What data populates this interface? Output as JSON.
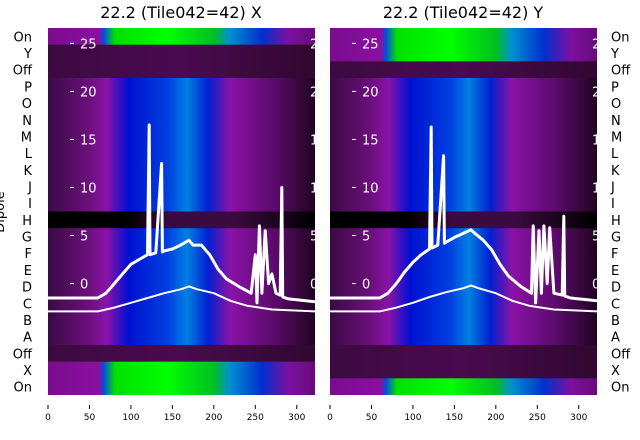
{
  "chart_data": {
    "type": "heatmap",
    "ylabel": "Dipole",
    "row_labels": [
      "On",
      "Y",
      "Off",
      "P",
      "O",
      "N",
      "M",
      "L",
      "K",
      "J",
      "I",
      "H",
      "G",
      "F",
      "E",
      "D",
      "C",
      "B",
      "A",
      "Off",
      "X",
      "On"
    ],
    "x_ticks": [
      0,
      50,
      100,
      150,
      200,
      250,
      300
    ],
    "xlim": [
      0,
      322
    ],
    "overlay_y_ticks": [
      0,
      5,
      10,
      15,
      20,
      25
    ],
    "overlay_ylim": [
      -11.6,
      26.6
    ],
    "panels": [
      {
        "title": "22.2 (Tile042=42) X",
        "row_bands": [
          "bright",
          "dim",
          "dim",
          "mid",
          "mid",
          "mid",
          "mid",
          "mid",
          "mid",
          "mid",
          "mid",
          "dead",
          "mid",
          "mid",
          "mid",
          "mid",
          "mid",
          "mid",
          "mid",
          "dim",
          "bright",
          "bright"
        ],
        "series": [
          {
            "name": "upper",
            "x": [
              0,
              60,
              70,
              80,
              90,
              100,
              110,
              120,
              122,
              123,
              130,
              137,
              138,
              140,
              150,
              160,
              170,
              175,
              185,
              195,
              205,
              215,
              230,
              245,
              250,
              252,
              255,
              258,
              262,
              266,
              270,
              275,
              280,
              282,
              283,
              290,
              322
            ],
            "y": [
              -1.5,
              -1.5,
              -1,
              0,
              1,
              2,
              2.5,
              3,
              16.5,
              3,
              3.2,
              12.5,
              3.3,
              3.4,
              3.6,
              4,
              4.5,
              4,
              4,
              3,
              1.5,
              0.5,
              -0.3,
              -1,
              3,
              -2,
              6,
              -1,
              5.5,
              0,
              1,
              -1,
              -1.2,
              10,
              -1.4,
              -1.6,
              -1.9
            ]
          },
          {
            "name": "lower",
            "x": [
              0,
              60,
              80,
              100,
              120,
              140,
              160,
              170,
              180,
              200,
              220,
              240,
              270,
              322
            ],
            "y": [
              -2.9,
              -2.9,
              -2.5,
              -2,
              -1.5,
              -1,
              -0.6,
              -0.3,
              -0.6,
              -1,
              -1.8,
              -2.3,
              -2.7,
              -2.9
            ]
          }
        ]
      },
      {
        "title": "22.2 (Tile042=42) Y",
        "row_bands": [
          "bright",
          "bright",
          "dim",
          "mid",
          "mid",
          "mid",
          "mid",
          "mid",
          "mid",
          "mid",
          "mid",
          "dead",
          "mid",
          "mid",
          "mid",
          "mid",
          "mid",
          "mid",
          "mid",
          "dim",
          "dim",
          "bright"
        ],
        "series": [
          {
            "name": "upper",
            "x": [
              0,
              60,
              70,
              80,
              90,
              100,
              110,
              120,
              122,
              123,
              130,
              137,
              138,
              140,
              150,
              160,
              170,
              175,
              185,
              195,
              205,
              215,
              230,
              243,
              245,
              248,
              252,
              255,
              258,
              262,
              265,
              270,
              280,
              282,
              283,
              290,
              322
            ],
            "y": [
              -1.5,
              -1.5,
              -1,
              0,
              1.2,
              2.2,
              3,
              3.6,
              16.3,
              3.7,
              4,
              13.3,
              4.2,
              4.3,
              4.8,
              5.2,
              5.6,
              5.2,
              4.5,
              3.5,
              2,
              0.8,
              -0.3,
              -1,
              6,
              -2,
              5.5,
              -1,
              6,
              0,
              5.8,
              -1,
              -1.2,
              7,
              -1.3,
              -1.5,
              -1.8
            ]
          },
          {
            "name": "lower",
            "x": [
              0,
              60,
              80,
              100,
              120,
              140,
              160,
              170,
              180,
              200,
              220,
              240,
              270,
              322
            ],
            "y": [
              -2.9,
              -2.9,
              -2.5,
              -2,
              -1.4,
              -0.9,
              -0.5,
              -0.2,
              -0.5,
              -1,
              -1.8,
              -2.3,
              -2.7,
              -2.9
            ]
          }
        ]
      }
    ]
  }
}
